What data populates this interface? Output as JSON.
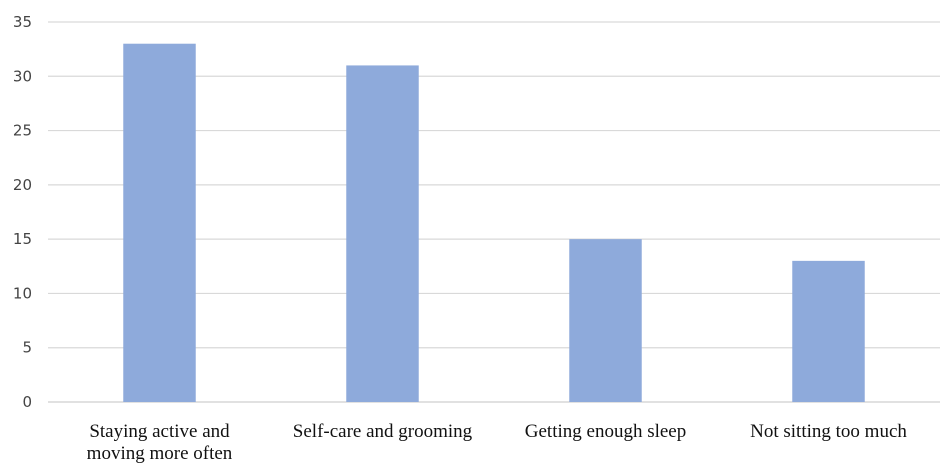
{
  "chart_data": {
    "type": "bar",
    "title": "",
    "xlabel": "",
    "ylabel": "",
    "ylim": [
      0,
      35
    ],
    "yticks": [
      0,
      5,
      10,
      15,
      20,
      25,
      30,
      35
    ],
    "grid": true,
    "legend": "none",
    "bar_color": "#8eaadb",
    "categories": [
      [
        "Staying active and",
        "moving more often"
      ],
      [
        "Self-care and grooming"
      ],
      [
        "Getting enough sleep"
      ],
      [
        "Not sitting too much"
      ]
    ],
    "values": [
      33,
      31,
      15,
      13
    ]
  }
}
